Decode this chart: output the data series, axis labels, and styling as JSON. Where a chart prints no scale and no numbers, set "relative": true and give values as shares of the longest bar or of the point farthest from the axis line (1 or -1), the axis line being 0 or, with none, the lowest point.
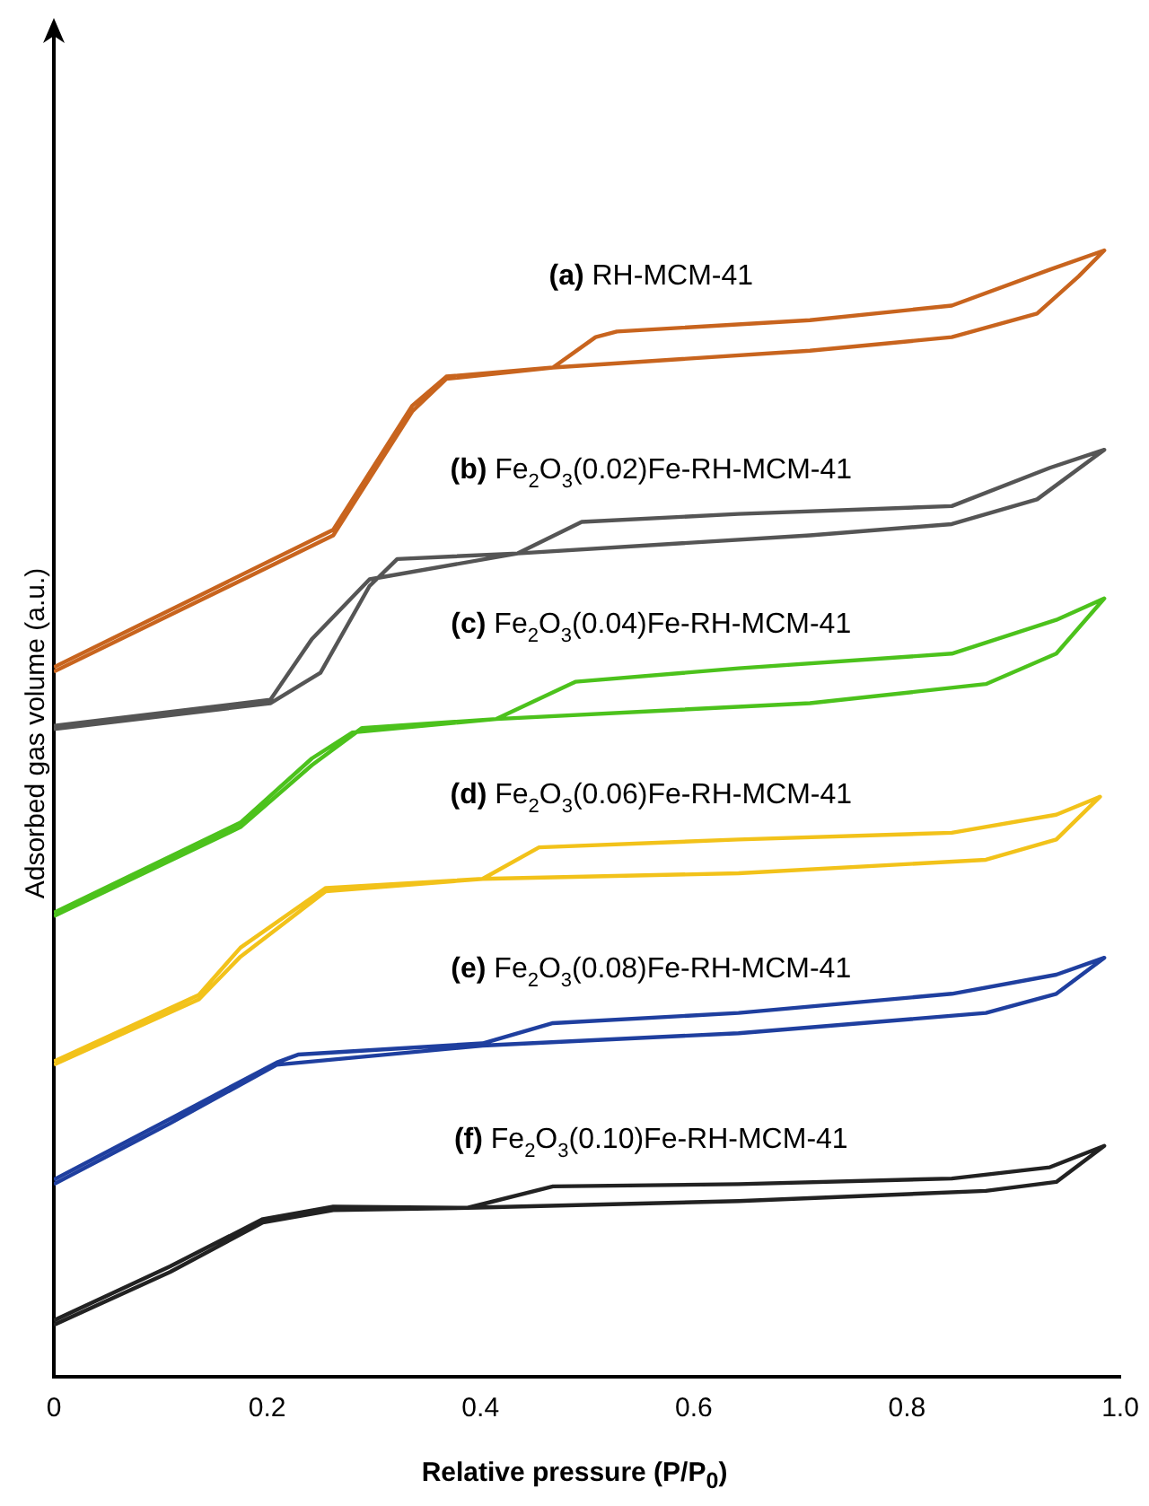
{
  "chart_data": {
    "type": "line",
    "relative": true,
    "xlabel": "Relative pressure (P/P$_{0}$)",
    "ylabel": "Adsorbed gas volume (a.u.)",
    "xlim": [
      0,
      1
    ],
    "xticks": [
      0,
      0.2,
      0.4,
      0.6,
      0.8,
      {
        "value": 1,
        "label": "1.0"
      }
    ],
    "grid": false,
    "legend": false,
    "marker": "none",
    "line_style": "solid",
    "series": [
      {
        "name": "(a) RH-MCM-41",
        "color": "#c8641e",
        "x": [
          0,
          0.262,
          0.336,
          0.368,
          0.468,
          0.709,
          0.842,
          0.922,
          0.961,
          0.985,
          0.934,
          0.842,
          0.709,
          0.528,
          0.508,
          0.468,
          0.368,
          0.336,
          0.262,
          0
        ],
        "values": [
          0.626,
          0.747,
          0.857,
          0.886,
          0.896,
          0.911,
          0.923,
          0.944,
          0.977,
          1,
          0.983,
          0.951,
          0.938,
          0.928,
          0.923,
          0.896,
          0.888,
          0.862,
          0.752,
          0.63
        ]
      },
      {
        "name": "(b) Fe$_{2}$O$_{3}$(0.02)Fe-RH-MCM-41",
        "color": "#555555",
        "x": [
          0,
          0.203,
          0.25,
          0.296,
          0.322,
          0.435,
          0.709,
          0.842,
          0.922,
          0.985,
          0.934,
          0.842,
          0.642,
          0.495,
          0.435,
          0.296,
          0.242,
          0.203,
          0
        ],
        "values": [
          0.575,
          0.598,
          0.625,
          0.702,
          0.726,
          0.731,
          0.747,
          0.757,
          0.779,
          0.823,
          0.807,
          0.773,
          0.766,
          0.759,
          0.731,
          0.708,
          0.655,
          0.601,
          0.578
        ]
      },
      {
        "name": "(c) Fe$_{2}$O$_{3}$(0.04)Fe-RH-MCM-41",
        "color": "#4cc21c",
        "x": [
          0,
          0.175,
          0.242,
          0.289,
          0.415,
          0.709,
          0.874,
          0.94,
          0.985,
          0.94,
          0.842,
          0.642,
          0.489,
          0.415,
          0.28,
          0.242,
          0.175,
          0
        ],
        "values": [
          0.409,
          0.488,
          0.543,
          0.576,
          0.584,
          0.598,
          0.615,
          0.642,
          0.691,
          0.672,
          0.642,
          0.629,
          0.617,
          0.584,
          0.572,
          0.549,
          0.492,
          0.412
        ]
      },
      {
        "name": "(d) Fe$_{2}$O$_{3}$(0.06)Fe-RH-MCM-41",
        "color": "#f2c21a",
        "x": [
          0,
          0.136,
          0.175,
          0.255,
          0.402,
          0.642,
          0.874,
          0.94,
          0.981,
          0.94,
          0.842,
          0.642,
          0.455,
          0.402,
          0.255,
          0.175,
          0.136,
          0
        ],
        "values": [
          0.277,
          0.335,
          0.373,
          0.431,
          0.442,
          0.447,
          0.459,
          0.477,
          0.515,
          0.499,
          0.483,
          0.477,
          0.47,
          0.442,
          0.434,
          0.381,
          0.339,
          0.28
        ]
      },
      {
        "name": "(e) Fe$_{2}$O$_{3}$(0.08)Fe-RH-MCM-41",
        "color": "#1f3f9f",
        "x": [
          0,
          0.109,
          0.209,
          0.402,
          0.642,
          0.874,
          0.94,
          0.985,
          0.94,
          0.842,
          0.642,
          0.468,
          0.402,
          0.229,
          0.209,
          0.109,
          0
        ],
        "values": [
          0.171,
          0.225,
          0.277,
          0.294,
          0.305,
          0.323,
          0.34,
          0.372,
          0.357,
          0.34,
          0.323,
          0.314,
          0.296,
          0.286,
          0.279,
          0.229,
          0.175
        ]
      },
      {
        "name": "(f) Fe$_{2}$O$_{3}$(0.10)Fe-RH-MCM-41",
        "color": "#222222",
        "x": [
          0,
          0.109,
          0.196,
          0.262,
          0.388,
          0.642,
          0.874,
          0.94,
          0.985,
          0.934,
          0.842,
          0.642,
          0.468,
          0.388,
          0.262,
          0.196,
          0.109,
          0
        ],
        "values": [
          0.046,
          0.093,
          0.137,
          0.148,
          0.15,
          0.156,
          0.165,
          0.173,
          0.205,
          0.186,
          0.176,
          0.171,
          0.169,
          0.15,
          0.151,
          0.14,
          0.098,
          0.05
        ]
      }
    ]
  }
}
